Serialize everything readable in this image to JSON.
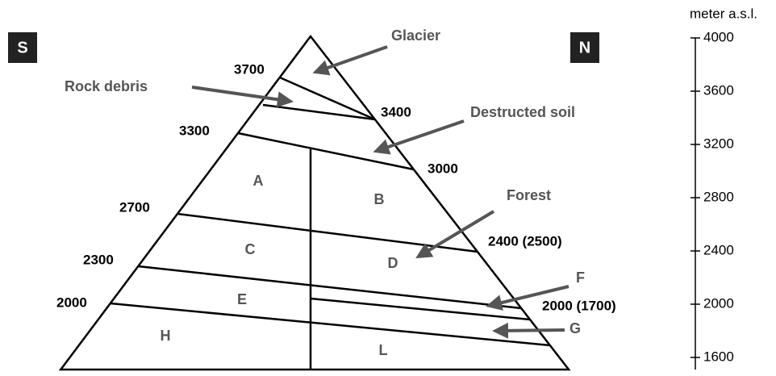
{
  "side_labels": {
    "left": "S",
    "right": "N"
  },
  "altitudes": {
    "a3700": "3700",
    "a3400": "3400",
    "a3300": "3300",
    "a3000": "3000",
    "a2700": "2700",
    "a2400": "2400 (2500)",
    "a2300": "2300",
    "a2000": "2000",
    "a2000n": "2000 (1700)"
  },
  "zones": {
    "A": "A",
    "B": "B",
    "C": "C",
    "D": "D",
    "E": "E",
    "H": "H",
    "L": "L"
  },
  "callouts": {
    "glacier": "Glacier",
    "rock_debris": "Rock debris",
    "destructed_soil": "Destructed soil",
    "forest": "Forest",
    "F": "F",
    "G": "G"
  },
  "scale": {
    "title": "meter a.s.l.",
    "ticks": [
      4000,
      3600,
      3200,
      2800,
      2400,
      2000,
      1600
    ]
  }
}
